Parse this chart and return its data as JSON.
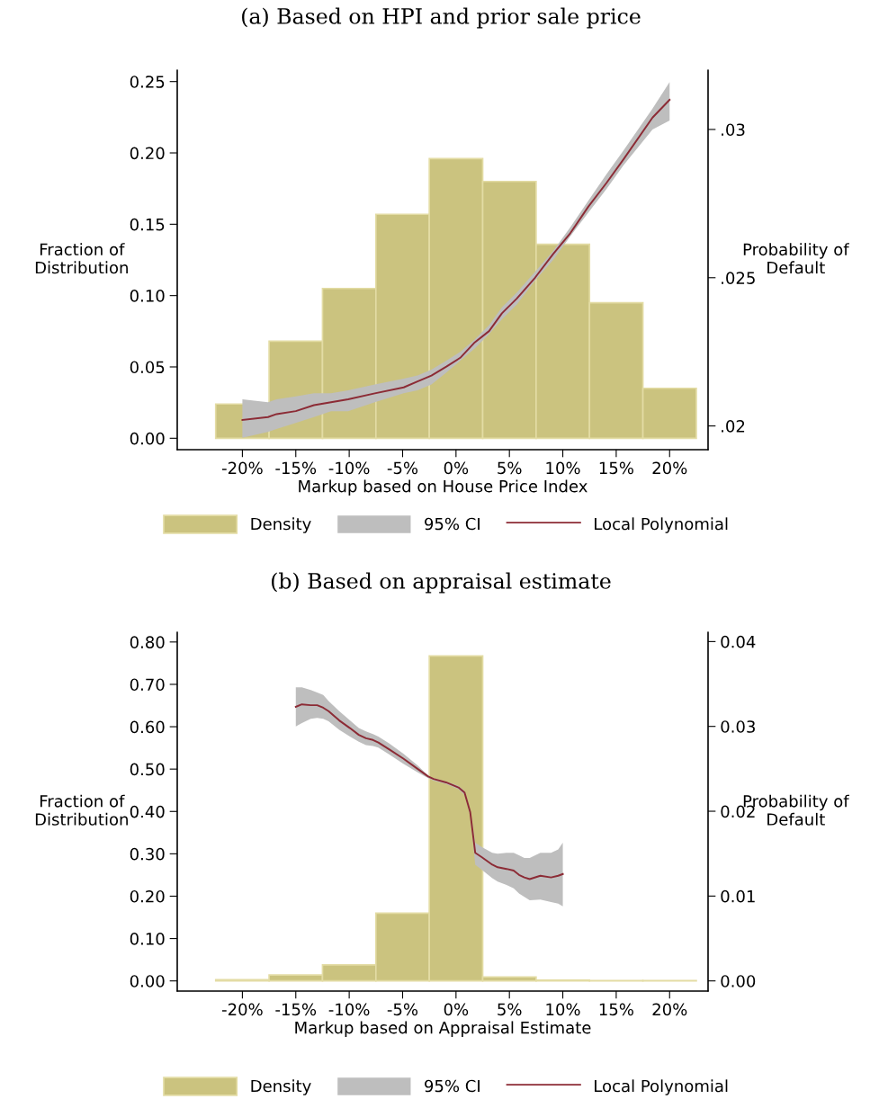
{
  "chart_data": [
    {
      "type": "histogram",
      "title": "(a) Based on HPI and prior sale price",
      "xlabel": "Markup based on House Price Index",
      "ylabel": "Fraction of\nDistribution",
      "y2label": "Probability of\nDefault",
      "legend": "bottom",
      "annotations": [
        "95% CI"
      ],
      "xlim": [
        -26.1,
        23.6
      ],
      "xticks": [
        {
          "value": -20,
          "label": "-20%"
        },
        {
          "value": -15,
          "label": "-15%"
        },
        {
          "value": -10,
          "label": "-10%"
        },
        {
          "value": -5,
          "label": "-5%"
        },
        {
          "value": 0,
          "label": "0%"
        },
        {
          "value": 5,
          "label": "5%"
        },
        {
          "value": 10,
          "label": "10%"
        },
        {
          "value": 15,
          "label": "15%"
        },
        {
          "value": 20,
          "label": "20%"
        }
      ],
      "ylim": [
        -0.008,
        0.258
      ],
      "yticks": [
        {
          "value": 0,
          "label": "0.00"
        },
        {
          "value": 0.05,
          "label": "0.05"
        },
        {
          "value": 0.1,
          "label": "0.10"
        },
        {
          "value": 0.15,
          "label": "0.15"
        },
        {
          "value": 0.2,
          "label": "0.20"
        },
        {
          "value": 0.25,
          "label": "0.25"
        }
      ],
      "y2lim": [
        0.0192,
        0.032
      ],
      "y2ticks": [
        {
          "value": 0.02,
          "label": ".02"
        },
        {
          "value": 0.025,
          "label": ".025"
        },
        {
          "value": 0.03,
          "label": ".03"
        }
      ],
      "series": [
        {
          "name": "Density",
          "color": "#cbc37f",
          "bins": [
            -22.5,
            -17.5,
            -12.5,
            -7.5,
            -2.5,
            2.5,
            7.5,
            12.5,
            17.5,
            22.5
          ],
          "values": [
            0.024,
            0.068,
            0.105,
            0.157,
            0.196,
            0.18,
            0.136,
            0.095,
            0.035
          ]
        },
        {
          "type": "line",
          "name": "Local Polynomial",
          "axis": "y2",
          "color": "#8c2b35",
          "x": [
            -20,
            -17.6,
            -16.8,
            -15,
            -13.3,
            -11.7,
            -10.1,
            -7.6,
            -4.9,
            -3.6,
            -2.3,
            -0.9,
            0.4,
            1.7,
            3.1,
            4.3,
            5.7,
            7.4,
            9.1,
            10.7,
            12.4,
            14.1,
            15.7,
            18.4,
            20
          ],
          "values": [
            0.0202,
            0.0203,
            0.0204,
            0.0205,
            0.0207,
            0.0208,
            0.0209,
            0.0211,
            0.0213,
            0.0215,
            0.0217,
            0.022,
            0.0223,
            0.0228,
            0.0232,
            0.0238,
            0.0243,
            0.025,
            0.0258,
            0.0265,
            0.0274,
            0.0282,
            0.029,
            0.0304,
            0.031
          ],
          "lower": [
            0.0196,
            0.0198,
            0.0199,
            0.0201,
            0.0203,
            0.0205,
            0.0205,
            0.0208,
            0.0211,
            0.0212,
            0.0214,
            0.0218,
            0.0222,
            0.0226,
            0.0231,
            0.0236,
            0.0241,
            0.0249,
            0.0256,
            0.0264,
            0.0272,
            0.028,
            0.0288,
            0.03,
            0.0303
          ],
          "upper": [
            0.0209,
            0.0208,
            0.0209,
            0.021,
            0.0211,
            0.0211,
            0.0212,
            0.0214,
            0.0216,
            0.0217,
            0.0219,
            0.0222,
            0.0225,
            0.0229,
            0.0234,
            0.024,
            0.0245,
            0.0252,
            0.0259,
            0.0267,
            0.0276,
            0.0285,
            0.0293,
            0.0307,
            0.0316
          ]
        }
      ]
    },
    {
      "type": "histogram",
      "title": "(b) Based on appraisal estimate",
      "xlabel": "Markup based on Appraisal Estimate",
      "ylabel": "Fraction of\nDistribution",
      "y2label": "Probability of\nDefault",
      "legend": "bottom",
      "annotations": [
        "95% CI"
      ],
      "xlim": [
        -26.1,
        23.6
      ],
      "xticks": [
        {
          "value": -20,
          "label": "-20%"
        },
        {
          "value": -15,
          "label": "-15%"
        },
        {
          "value": -10,
          "label": "-10%"
        },
        {
          "value": -5,
          "label": "-5%"
        },
        {
          "value": 0,
          "label": "0%"
        },
        {
          "value": 5,
          "label": "5%"
        },
        {
          "value": 10,
          "label": "10%"
        },
        {
          "value": 15,
          "label": "15%"
        },
        {
          "value": 20,
          "label": "20%"
        }
      ],
      "ylim": [
        -0.024,
        0.823
      ],
      "yticks": [
        {
          "value": 0,
          "label": "0.00"
        },
        {
          "value": 0.1,
          "label": "0.10"
        },
        {
          "value": 0.2,
          "label": "0.20"
        },
        {
          "value": 0.3,
          "label": "0.30"
        },
        {
          "value": 0.4,
          "label": "0.40"
        },
        {
          "value": 0.5,
          "label": "0.50"
        },
        {
          "value": 0.6,
          "label": "0.60"
        },
        {
          "value": 0.7,
          "label": "0.70"
        },
        {
          "value": 0.8,
          "label": "0.80"
        }
      ],
      "y2lim": [
        -0.0012,
        0.0411
      ],
      "y2ticks": [
        {
          "value": 0,
          "label": "0.00"
        },
        {
          "value": 0.01,
          "label": "0.01"
        },
        {
          "value": 0.02,
          "label": "0.02"
        },
        {
          "value": 0.03,
          "label": "0.03"
        },
        {
          "value": 0.04,
          "label": "0.04"
        }
      ],
      "series": [
        {
          "name": "Density",
          "color": "#cbc37f",
          "bins": [
            -22.5,
            -17.5,
            -12.5,
            -7.5,
            -2.5,
            2.5,
            7.5,
            12.5,
            17.5,
            22.5
          ],
          "values": [
            0.003,
            0.014,
            0.038,
            0.16,
            0.767,
            0.009,
            0.002,
            0.001,
            0.001
          ]
        },
        {
          "type": "line",
          "name": "Local Polynomial",
          "axis": "y2",
          "color": "#8c2b35",
          "x": [
            -15,
            -14.43,
            -13.6,
            -13,
            -12.43,
            -11.93,
            -10.93,
            -9.93,
            -9.1,
            -8.43,
            -7.77,
            -7.27,
            -6.27,
            -4.93,
            -3.6,
            -2.6,
            -2.1,
            -0.93,
            0.23,
            0.8,
            1.33,
            1.8,
            2.4,
            3.4,
            3.9,
            4.73,
            5.4,
            5.9,
            6.4,
            6.9,
            7.9,
            8.9,
            9.57,
            10
          ],
          "values": [
            0.0323,
            0.0326,
            0.0325,
            0.0325,
            0.0322,
            0.0318,
            0.0307,
            0.0298,
            0.029,
            0.0286,
            0.0284,
            0.0281,
            0.0273,
            0.0262,
            0.025,
            0.0241,
            0.0238,
            0.0234,
            0.0228,
            0.0222,
            0.0199,
            0.0151,
            0.0146,
            0.0137,
            0.0134,
            0.0132,
            0.013,
            0.0125,
            0.0122,
            0.012,
            0.0124,
            0.0122,
            0.0124,
            0.0126
          ],
          "lower": [
            0.03,
            0.0304,
            0.0309,
            0.031,
            0.0309,
            0.0306,
            0.0296,
            0.0288,
            0.0282,
            0.0278,
            0.0277,
            0.0275,
            0.0267,
            0.0256,
            0.0246,
            0.0239,
            0.0236,
            0.0232,
            0.0226,
            0.0219,
            0.0195,
            0.0137,
            0.0131,
            0.0121,
            0.0117,
            0.0113,
            0.0109,
            0.0103,
            0.0099,
            0.0095,
            0.0096,
            0.0093,
            0.0091,
            0.0088
          ],
          "upper": [
            0.0346,
            0.0346,
            0.0343,
            0.034,
            0.0337,
            0.033,
            0.0318,
            0.0307,
            0.0298,
            0.0294,
            0.0291,
            0.0288,
            0.028,
            0.0268,
            0.0254,
            0.0242,
            0.0239,
            0.0235,
            0.023,
            0.0224,
            0.0202,
            0.0163,
            0.0158,
            0.0151,
            0.015,
            0.0151,
            0.0151,
            0.0148,
            0.0145,
            0.0145,
            0.0151,
            0.0151,
            0.0155,
            0.0163
          ]
        }
      ]
    }
  ]
}
